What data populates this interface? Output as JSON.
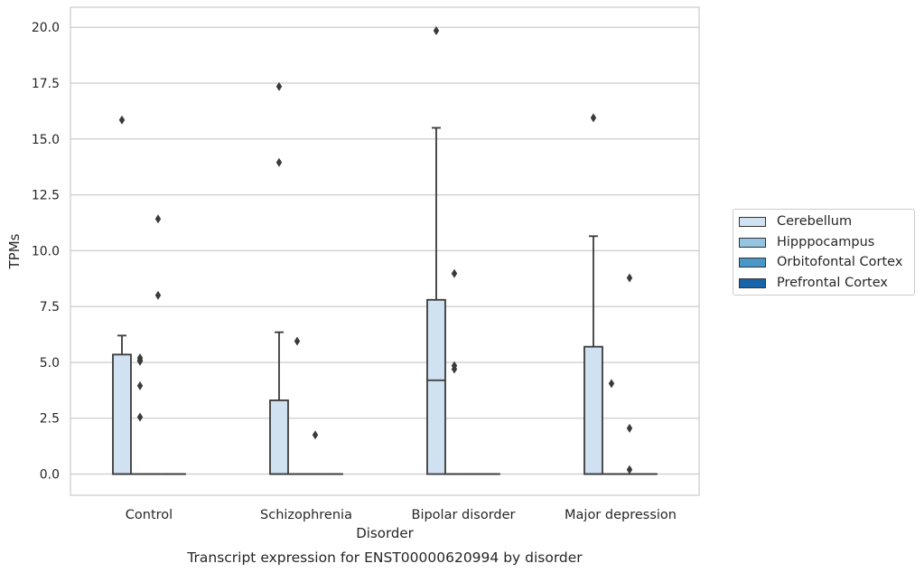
{
  "chart_data": {
    "type": "box",
    "title": "Transcript expression for ENST00000620994 by disorder",
    "xlabel": "Disorder",
    "ylabel": "TPMs",
    "ylim": [
      -0.95,
      20.9
    ],
    "yticks": [
      "0.0",
      "2.5",
      "5.0",
      "7.5",
      "10.0",
      "12.5",
      "15.0",
      "17.5",
      "20.0"
    ],
    "categories": [
      "Control",
      "Schizophrenia",
      "Bipolar disorder",
      "Major depression"
    ],
    "grid": "horizontal",
    "legend_position": "right",
    "series": [
      {
        "name": "Cerebellum",
        "color": "#d0e1f2",
        "boxes": [
          {
            "q1": 0,
            "median": 0,
            "q3": 5.35,
            "whisker_low": 0,
            "whisker_high": 6.2,
            "outliers": [
              15.85
            ]
          },
          {
            "q1": 0,
            "median": 0,
            "q3": 3.3,
            "whisker_low": 0,
            "whisker_high": 6.35,
            "outliers": [
              13.95,
              17.35
            ]
          },
          {
            "q1": 0,
            "median": 4.2,
            "q3": 7.8,
            "whisker_low": 0,
            "whisker_high": 15.5,
            "outliers": [
              19.85
            ]
          },
          {
            "q1": 0,
            "median": 0,
            "q3": 5.7,
            "whisker_low": 0,
            "whisker_high": 10.65,
            "outliers": [
              15.95
            ]
          }
        ]
      },
      {
        "name": "Hipppocampus",
        "color": "#94c4df",
        "boxes": [
          {
            "q1": 0,
            "median": 0,
            "q3": 0,
            "whisker_low": 0,
            "whisker_high": 0,
            "outliers": [
              2.55,
              3.95,
              5.05,
              5.1,
              5.2
            ]
          },
          {
            "q1": 0,
            "median": 0,
            "q3": 0,
            "whisker_low": 0,
            "whisker_high": 0,
            "outliers": [
              5.95
            ]
          },
          {
            "q1": 0,
            "median": 0,
            "q3": 0,
            "whisker_low": 0,
            "whisker_high": 0,
            "outliers": [
              4.7,
              4.85,
              8.98
            ]
          },
          {
            "q1": 0,
            "median": 0,
            "q3": 0,
            "whisker_low": 0,
            "whisker_high": 0,
            "outliers": [
              4.05
            ]
          }
        ]
      },
      {
        "name": "Orbitofontal Cortex",
        "color": "#4a98c9",
        "boxes": [
          {
            "q1": 0,
            "median": 0,
            "q3": 0,
            "whisker_low": 0,
            "whisker_high": 0,
            "outliers": [
              8.0,
              11.42
            ]
          },
          {
            "q1": 0,
            "median": 0,
            "q3": 0,
            "whisker_low": 0,
            "whisker_high": 0,
            "outliers": [
              1.75
            ]
          },
          {
            "q1": 0,
            "median": 0,
            "q3": 0,
            "whisker_low": 0,
            "whisker_high": 0,
            "outliers": []
          },
          {
            "q1": 0,
            "median": 0,
            "q3": 0,
            "whisker_low": 0,
            "whisker_high": 0,
            "outliers": [
              0.2,
              2.05,
              8.78
            ]
          }
        ]
      },
      {
        "name": "Prefrontal Cortex",
        "color": "#1764ab",
        "boxes": [
          {
            "q1": 0,
            "median": 0,
            "q3": 0,
            "whisker_low": 0,
            "whisker_high": 0,
            "outliers": []
          },
          {
            "q1": 0,
            "median": 0,
            "q3": 0,
            "whisker_low": 0,
            "whisker_high": 0,
            "outliers": []
          },
          {
            "q1": 0,
            "median": 0,
            "q3": 0,
            "whisker_low": 0,
            "whisker_high": 0,
            "outliers": []
          },
          {
            "q1": 0,
            "median": 0,
            "q3": 0,
            "whisker_low": 0,
            "whisker_high": 0,
            "outliers": []
          }
        ]
      }
    ]
  }
}
